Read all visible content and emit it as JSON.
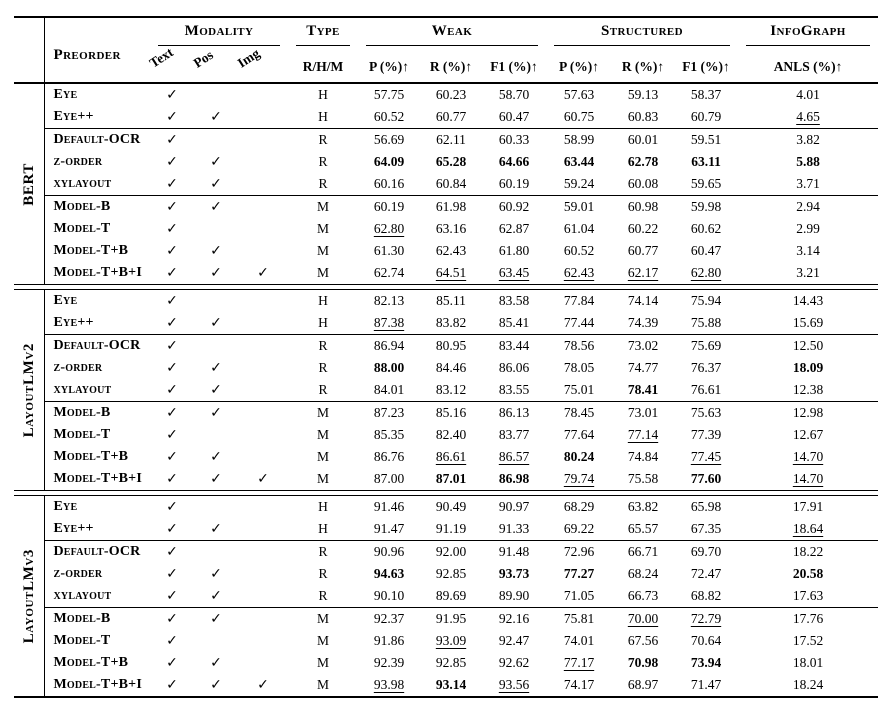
{
  "colors": {
    "text": "#000000",
    "rule": "#000000",
    "background": "#ffffff"
  },
  "icons": {
    "check": "✓"
  },
  "header": {
    "preorder": "Preorder",
    "modality": "Modality",
    "modality_sub": [
      "Text",
      "Pos",
      "Img"
    ],
    "type": "Type",
    "type_sub": "R/H/M",
    "weak": "Weak",
    "structured": "Structured",
    "infograph": "InfoGraph",
    "metric_sub": [
      "P (%)↑",
      "R (%)↑",
      "F1 (%)↑"
    ],
    "infograph_sub": "ANLS (%)↑"
  },
  "groups": [
    {
      "model": "BERT",
      "subgroups": [
        [
          [
            "Eye",
            [
              1,
              0,
              0
            ],
            "H",
            [
              "57.75",
              "60.23",
              "58.70"
            ],
            [
              "57.63",
              "59.13",
              "58.37"
            ],
            "4.01"
          ],
          [
            "Eye++",
            [
              1,
              1,
              0
            ],
            "H",
            [
              "60.52",
              "60.77",
              "60.47"
            ],
            [
              "60.75",
              "60.83",
              "60.79"
            ],
            "u:4.65"
          ]
        ],
        [
          [
            "Default-OCR",
            [
              1,
              0,
              0
            ],
            "R",
            [
              "56.69",
              "62.11",
              "60.33"
            ],
            [
              "58.99",
              "60.01",
              "59.51"
            ],
            "3.82"
          ],
          [
            "z-order",
            [
              1,
              1,
              0
            ],
            "R",
            [
              "b:64.09",
              "b:65.28",
              "b:64.66"
            ],
            [
              "b:63.44",
              "b:62.78",
              "b:63.11"
            ],
            "b:5.88"
          ],
          [
            "xylayout",
            [
              1,
              1,
              0
            ],
            "R",
            [
              "60.16",
              "60.84",
              "60.19"
            ],
            [
              "59.24",
              "60.08",
              "59.65"
            ],
            "3.71"
          ]
        ],
        [
          [
            "Model-B",
            [
              1,
              1,
              0
            ],
            "M",
            [
              "60.19",
              "61.98",
              "60.92"
            ],
            [
              "59.01",
              "60.98",
              "59.98"
            ],
            "2.94"
          ],
          [
            "Model-T",
            [
              1,
              0,
              0
            ],
            "M",
            [
              "u:62.80",
              "63.16",
              "62.87"
            ],
            [
              "61.04",
              "60.22",
              "60.62"
            ],
            "2.99"
          ],
          [
            "Model-T+B",
            [
              1,
              1,
              0
            ],
            "M",
            [
              "61.30",
              "62.43",
              "61.80"
            ],
            [
              "60.52",
              "60.77",
              "60.47"
            ],
            "3.14"
          ],
          [
            "Model-T+B+I",
            [
              1,
              1,
              1
            ],
            "M",
            [
              "62.74",
              "u:64.51",
              "u:63.45"
            ],
            [
              "u:62.43",
              "u:62.17",
              "u:62.80"
            ],
            "3.21"
          ]
        ]
      ]
    },
    {
      "model": "LayoutLMv2",
      "subgroups": [
        [
          [
            "Eye",
            [
              1,
              0,
              0
            ],
            "H",
            [
              "82.13",
              "85.11",
              "83.58"
            ],
            [
              "77.84",
              "74.14",
              "75.94"
            ],
            "14.43"
          ],
          [
            "Eye++",
            [
              1,
              1,
              0
            ],
            "H",
            [
              "u:87.38",
              "83.82",
              "85.41"
            ],
            [
              "77.44",
              "74.39",
              "75.88"
            ],
            "15.69"
          ]
        ],
        [
          [
            "Default-OCR",
            [
              1,
              0,
              0
            ],
            "R",
            [
              "86.94",
              "80.95",
              "83.44"
            ],
            [
              "78.56",
              "73.02",
              "75.69"
            ],
            "12.50"
          ],
          [
            "z-order",
            [
              1,
              1,
              0
            ],
            "R",
            [
              "b:88.00",
              "84.46",
              "86.06"
            ],
            [
              "78.05",
              "74.77",
              "76.37"
            ],
            "b:18.09"
          ],
          [
            "xylayout",
            [
              1,
              1,
              0
            ],
            "R",
            [
              "84.01",
              "83.12",
              "83.55"
            ],
            [
              "75.01",
              "b:78.41",
              "76.61"
            ],
            "12.38"
          ]
        ],
        [
          [
            "Model-B",
            [
              1,
              1,
              0
            ],
            "M",
            [
              "87.23",
              "85.16",
              "86.13"
            ],
            [
              "78.45",
              "73.01",
              "75.63"
            ],
            "12.98"
          ],
          [
            "Model-T",
            [
              1,
              0,
              0
            ],
            "M",
            [
              "85.35",
              "82.40",
              "83.77"
            ],
            [
              "77.64",
              "u:77.14",
              "77.39"
            ],
            "12.67"
          ],
          [
            "Model-T+B",
            [
              1,
              1,
              0
            ],
            "M",
            [
              "86.76",
              "u:86.61",
              "u:86.57"
            ],
            [
              "b:80.24",
              "74.84",
              "u:77.45"
            ],
            "u:14.70"
          ],
          [
            "Model-T+B+I",
            [
              1,
              1,
              1
            ],
            "M",
            [
              "87.00",
              "b:87.01",
              "b:86.98"
            ],
            [
              "u:79.74",
              "75.58",
              "b:77.60"
            ],
            "u:14.70"
          ]
        ]
      ]
    },
    {
      "model": "LayoutLMv3",
      "subgroups": [
        [
          [
            "Eye",
            [
              1,
              0,
              0
            ],
            "H",
            [
              "91.46",
              "90.49",
              "90.97"
            ],
            [
              "68.29",
              "63.82",
              "65.98"
            ],
            "17.91"
          ],
          [
            "Eye++",
            [
              1,
              1,
              0
            ],
            "H",
            [
              "91.47",
              "91.19",
              "91.33"
            ],
            [
              "69.22",
              "65.57",
              "67.35"
            ],
            "u:18.64"
          ]
        ],
        [
          [
            "Default-OCR",
            [
              1,
              0,
              0
            ],
            "R",
            [
              "90.96",
              "92.00",
              "91.48"
            ],
            [
              "72.96",
              "66.71",
              "69.70"
            ],
            "18.22"
          ],
          [
            "z-order",
            [
              1,
              1,
              0
            ],
            "R",
            [
              "b:94.63",
              "92.85",
              "b:93.73"
            ],
            [
              "b:77.27",
              "68.24",
              "72.47"
            ],
            "b:20.58"
          ],
          [
            "xylayout",
            [
              1,
              1,
              0
            ],
            "R",
            [
              "90.10",
              "89.69",
              "89.90"
            ],
            [
              "71.05",
              "66.73",
              "68.82"
            ],
            "17.63"
          ]
        ],
        [
          [
            "Model-B",
            [
              1,
              1,
              0
            ],
            "M",
            [
              "92.37",
              "91.95",
              "92.16"
            ],
            [
              "75.81",
              "u:70.00",
              "u:72.79"
            ],
            "17.76"
          ],
          [
            "Model-T",
            [
              1,
              0,
              0
            ],
            "M",
            [
              "91.86",
              "u:93.09",
              "92.47"
            ],
            [
              "74.01",
              "67.56",
              "70.64"
            ],
            "17.52"
          ],
          [
            "Model-T+B",
            [
              1,
              1,
              0
            ],
            "M",
            [
              "92.39",
              "92.85",
              "92.62"
            ],
            [
              "u:77.17",
              "b:70.98",
              "b:73.94"
            ],
            "18.01"
          ],
          [
            "Model-T+B+I",
            [
              1,
              1,
              1
            ],
            "M",
            [
              "u:93.98",
              "b:93.14",
              "u:93.56"
            ],
            [
              "74.17",
              "68.97",
              "71.47"
            ],
            "18.24"
          ]
        ]
      ]
    }
  ]
}
